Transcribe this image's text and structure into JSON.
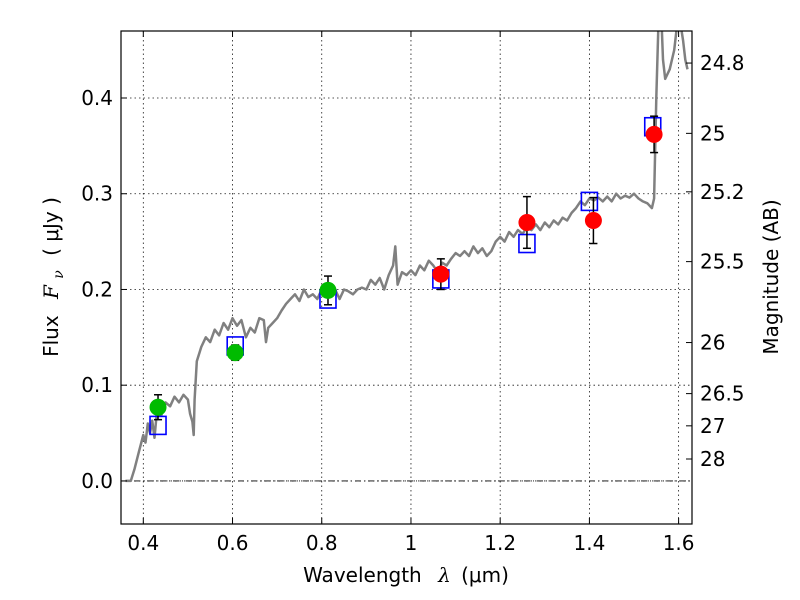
{
  "chart_data": {
    "type": "scatter",
    "xlabel_text": "Wavelength",
    "xlabel_symbol": "λ",
    "xlabel_unit": "(μm)",
    "ylabel_text": "Flux",
    "ylabel_symbol": "F",
    "ylabel_sub": "ν",
    "ylabel_unit": "( μJy )",
    "y2label": "Magnitude (AB)",
    "xlim": [
      0.35,
      1.63
    ],
    "ylim": [
      -0.045,
      0.47
    ],
    "xticks": [
      {
        "v": 0.4,
        "label": "0.4"
      },
      {
        "v": 0.6,
        "label": "0.6"
      },
      {
        "v": 0.8,
        "label": "0.8"
      },
      {
        "v": 1.0,
        "label": "1"
      },
      {
        "v": 1.2,
        "label": "1.2"
      },
      {
        "v": 1.4,
        "label": "1.4"
      },
      {
        "v": 1.6,
        "label": "1.6"
      }
    ],
    "yticks": [
      {
        "v": 0.0,
        "label": "0.0"
      },
      {
        "v": 0.1,
        "label": "0.1"
      },
      {
        "v": 0.2,
        "label": "0.2"
      },
      {
        "v": 0.3,
        "label": "0.3"
      },
      {
        "v": 0.4,
        "label": "0.4"
      }
    ],
    "mag_ticks": [
      {
        "mag": 24.8,
        "label": "24.8"
      },
      {
        "mag": 25,
        "label": "25"
      },
      {
        "mag": 25.2,
        "label": "25.2"
      },
      {
        "mag": 25.5,
        "label": "25.5"
      },
      {
        "mag": 26,
        "label": "26"
      },
      {
        "mag": 26.5,
        "label": "26.5"
      },
      {
        "mag": 27,
        "label": "27"
      },
      {
        "mag": 28,
        "label": "28"
      }
    ],
    "mag_zeropoint": 23.9,
    "model_color": "#808080",
    "model_spectrum": [
      [
        0.36,
        0.0
      ],
      [
        0.372,
        0.0
      ],
      [
        0.38,
        0.012
      ],
      [
        0.39,
        0.03
      ],
      [
        0.4,
        0.048
      ],
      [
        0.405,
        0.04
      ],
      [
        0.41,
        0.06
      ],
      [
        0.415,
        0.05
      ],
      [
        0.42,
        0.063
      ],
      [
        0.425,
        0.045
      ],
      [
        0.43,
        0.07
      ],
      [
        0.44,
        0.068
      ],
      [
        0.45,
        0.082
      ],
      [
        0.46,
        0.078
      ],
      [
        0.47,
        0.088
      ],
      [
        0.48,
        0.082
      ],
      [
        0.49,
        0.09
      ],
      [
        0.5,
        0.085
      ],
      [
        0.505,
        0.07
      ],
      [
        0.51,
        0.062
      ],
      [
        0.513,
        0.048
      ],
      [
        0.515,
        0.085
      ],
      [
        0.52,
        0.125
      ],
      [
        0.53,
        0.14
      ],
      [
        0.54,
        0.15
      ],
      [
        0.55,
        0.145
      ],
      [
        0.56,
        0.158
      ],
      [
        0.57,
        0.152
      ],
      [
        0.58,
        0.165
      ],
      [
        0.59,
        0.158
      ],
      [
        0.6,
        0.17
      ],
      [
        0.61,
        0.162
      ],
      [
        0.62,
        0.168
      ],
      [
        0.63,
        0.15
      ],
      [
        0.64,
        0.16
      ],
      [
        0.65,
        0.155
      ],
      [
        0.66,
        0.17
      ],
      [
        0.67,
        0.168
      ],
      [
        0.675,
        0.145
      ],
      [
        0.68,
        0.16
      ],
      [
        0.69,
        0.165
      ],
      [
        0.7,
        0.17
      ],
      [
        0.71,
        0.178
      ],
      [
        0.72,
        0.185
      ],
      [
        0.73,
        0.19
      ],
      [
        0.74,
        0.195
      ],
      [
        0.75,
        0.188
      ],
      [
        0.76,
        0.2
      ],
      [
        0.77,
        0.192
      ],
      [
        0.78,
        0.195
      ],
      [
        0.79,
        0.19
      ],
      [
        0.8,
        0.2
      ],
      [
        0.81,
        0.205
      ],
      [
        0.82,
        0.195
      ],
      [
        0.83,
        0.2
      ],
      [
        0.84,
        0.19
      ],
      [
        0.85,
        0.2
      ],
      [
        0.86,
        0.198
      ],
      [
        0.87,
        0.195
      ],
      [
        0.88,
        0.2
      ],
      [
        0.89,
        0.202
      ],
      [
        0.9,
        0.2
      ],
      [
        0.91,
        0.21
      ],
      [
        0.92,
        0.205
      ],
      [
        0.93,
        0.212
      ],
      [
        0.94,
        0.2
      ],
      [
        0.95,
        0.215
      ],
      [
        0.96,
        0.225
      ],
      [
        0.965,
        0.245
      ],
      [
        0.97,
        0.205
      ],
      [
        0.98,
        0.218
      ],
      [
        0.99,
        0.215
      ],
      [
        1.0,
        0.22
      ],
      [
        1.01,
        0.215
      ],
      [
        1.02,
        0.225
      ],
      [
        1.03,
        0.22
      ],
      [
        1.04,
        0.23
      ],
      [
        1.05,
        0.225
      ],
      [
        1.06,
        0.218
      ],
      [
        1.07,
        0.228
      ],
      [
        1.08,
        0.225
      ],
      [
        1.09,
        0.232
      ],
      [
        1.1,
        0.238
      ],
      [
        1.11,
        0.235
      ],
      [
        1.12,
        0.24
      ],
      [
        1.13,
        0.235
      ],
      [
        1.14,
        0.245
      ],
      [
        1.15,
        0.238
      ],
      [
        1.16,
        0.243
      ],
      [
        1.17,
        0.235
      ],
      [
        1.18,
        0.24
      ],
      [
        1.19,
        0.25
      ],
      [
        1.2,
        0.255
      ],
      [
        1.21,
        0.25
      ],
      [
        1.22,
        0.26
      ],
      [
        1.23,
        0.255
      ],
      [
        1.24,
        0.262
      ],
      [
        1.25,
        0.258
      ],
      [
        1.26,
        0.265
      ],
      [
        1.27,
        0.262
      ],
      [
        1.28,
        0.268
      ],
      [
        1.29,
        0.262
      ],
      [
        1.3,
        0.27
      ],
      [
        1.31,
        0.265
      ],
      [
        1.32,
        0.272
      ],
      [
        1.33,
        0.268
      ],
      [
        1.34,
        0.275
      ],
      [
        1.35,
        0.272
      ],
      [
        1.36,
        0.28
      ],
      [
        1.37,
        0.285
      ],
      [
        1.38,
        0.292
      ],
      [
        1.39,
        0.288
      ],
      [
        1.4,
        0.295
      ],
      [
        1.41,
        0.293
      ],
      [
        1.42,
        0.296
      ],
      [
        1.43,
        0.292
      ],
      [
        1.44,
        0.297
      ],
      [
        1.45,
        0.292
      ],
      [
        1.46,
        0.3
      ],
      [
        1.47,
        0.295
      ],
      [
        1.48,
        0.298
      ],
      [
        1.49,
        0.296
      ],
      [
        1.5,
        0.3
      ],
      [
        1.51,
        0.295
      ],
      [
        1.52,
        0.292
      ],
      [
        1.53,
        0.29
      ],
      [
        1.54,
        0.285
      ],
      [
        1.545,
        0.295
      ],
      [
        1.55,
        0.4
      ],
      [
        1.555,
        0.48
      ],
      [
        1.56,
        0.5
      ],
      [
        1.565,
        0.44
      ],
      [
        1.57,
        0.42
      ],
      [
        1.58,
        0.43
      ],
      [
        1.59,
        0.45
      ],
      [
        1.6,
        0.49
      ],
      [
        1.61,
        0.46
      ],
      [
        1.615,
        0.44
      ],
      [
        1.62,
        0.43
      ]
    ],
    "observed_points": [
      {
        "x": 0.433,
        "y": 0.077,
        "yerr": 0.013,
        "color": "#00bb00"
      },
      {
        "x": 0.606,
        "y": 0.134,
        "yerr": 0.008,
        "color": "#00bb00"
      },
      {
        "x": 0.814,
        "y": 0.199,
        "yerr": 0.015,
        "color": "#00bb00"
      },
      {
        "x": 1.067,
        "y": 0.216,
        "yerr": 0.016,
        "color": "#ff0000"
      },
      {
        "x": 1.26,
        "y": 0.27,
        "yerr": 0.027,
        "color": "#ff0000"
      },
      {
        "x": 1.409,
        "y": 0.272,
        "yerr": 0.024,
        "color": "#ff0000"
      },
      {
        "x": 1.545,
        "y": 0.362,
        "yerr": 0.019,
        "color": "#ff0000"
      }
    ],
    "model_photometry": [
      {
        "x": 0.433,
        "y": 0.058,
        "color": "#0000ff"
      },
      {
        "x": 0.606,
        "y": 0.141,
        "color": "#0000ff"
      },
      {
        "x": 0.814,
        "y": 0.19,
        "color": "#0000ff"
      },
      {
        "x": 1.067,
        "y": 0.211,
        "color": "#0000ff"
      },
      {
        "x": 1.26,
        "y": 0.248,
        "color": "#0000ff"
      },
      {
        "x": 1.4,
        "y": 0.292,
        "color": "#0000ff"
      },
      {
        "x": 1.542,
        "y": 0.37,
        "color": "#0000ff"
      }
    ]
  }
}
